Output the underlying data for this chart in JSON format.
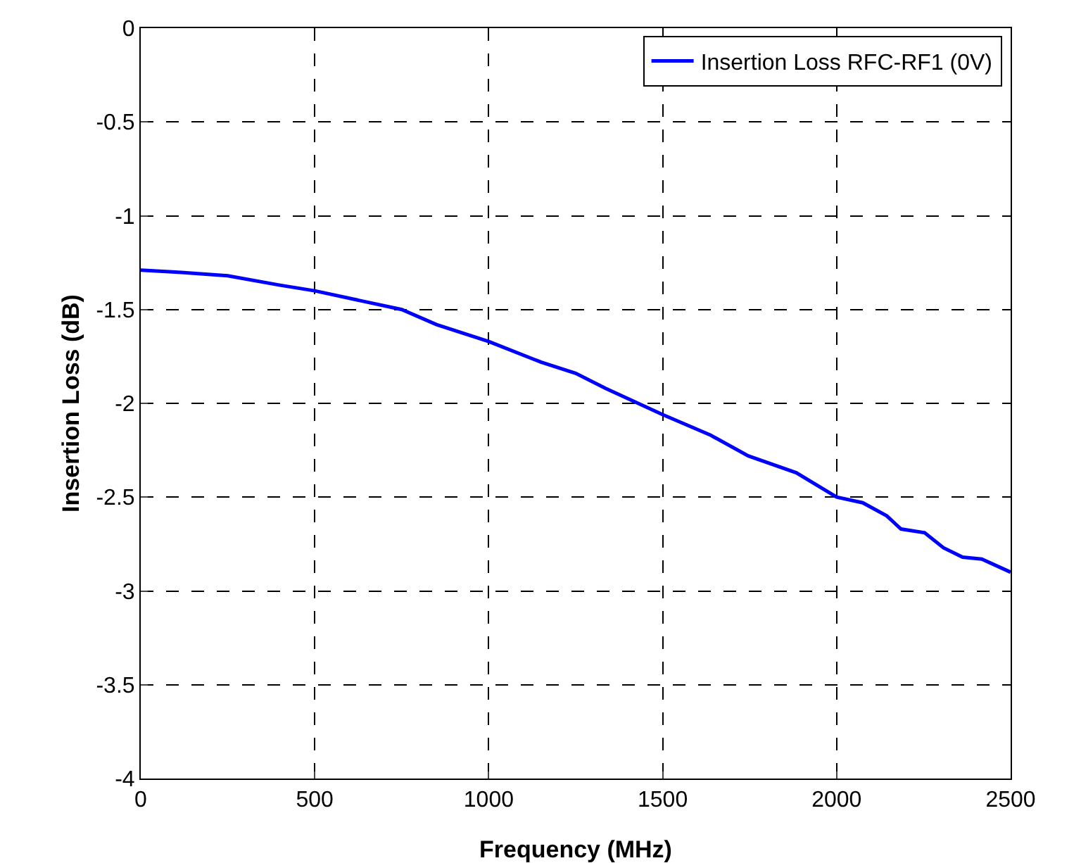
{
  "chart_data": {
    "type": "line",
    "xlabel": "Frequency (MHz)",
    "ylabel": "Insertion Loss (dB)",
    "x": [
      0,
      100,
      250,
      400,
      500,
      650,
      750,
      850,
      1000,
      1150,
      1250,
      1336,
      1500,
      1638,
      1746,
      1884,
      2000,
      2075,
      2144,
      2185,
      2253,
      2307,
      2362,
      2417,
      2500
    ],
    "series": [
      {
        "name": "Insertion Loss RFC-RF1 (0V)",
        "color": "#0000ff",
        "values": [
          -1.29,
          -1.3,
          -1.32,
          -1.37,
          -1.4,
          -1.46,
          -1.5,
          -1.58,
          -1.67,
          -1.78,
          -1.84,
          -1.92,
          -2.06,
          -2.17,
          -2.28,
          -2.37,
          -2.5,
          -2.53,
          -2.6,
          -2.67,
          -2.69,
          -2.77,
          -2.82,
          -2.83,
          -2.9
        ]
      }
    ],
    "xlim": [
      0,
      2500
    ],
    "xticks": [
      0,
      500,
      1000,
      1500,
      2000,
      2500
    ],
    "ylim": [
      -4,
      0
    ],
    "yticks": [
      0,
      -0.5,
      -1,
      -1.5,
      -2,
      -2.5,
      -3,
      -3.5,
      -4
    ],
    "grid": true,
    "legend": "top right",
    "marker": "none",
    "line_style": "solid"
  }
}
